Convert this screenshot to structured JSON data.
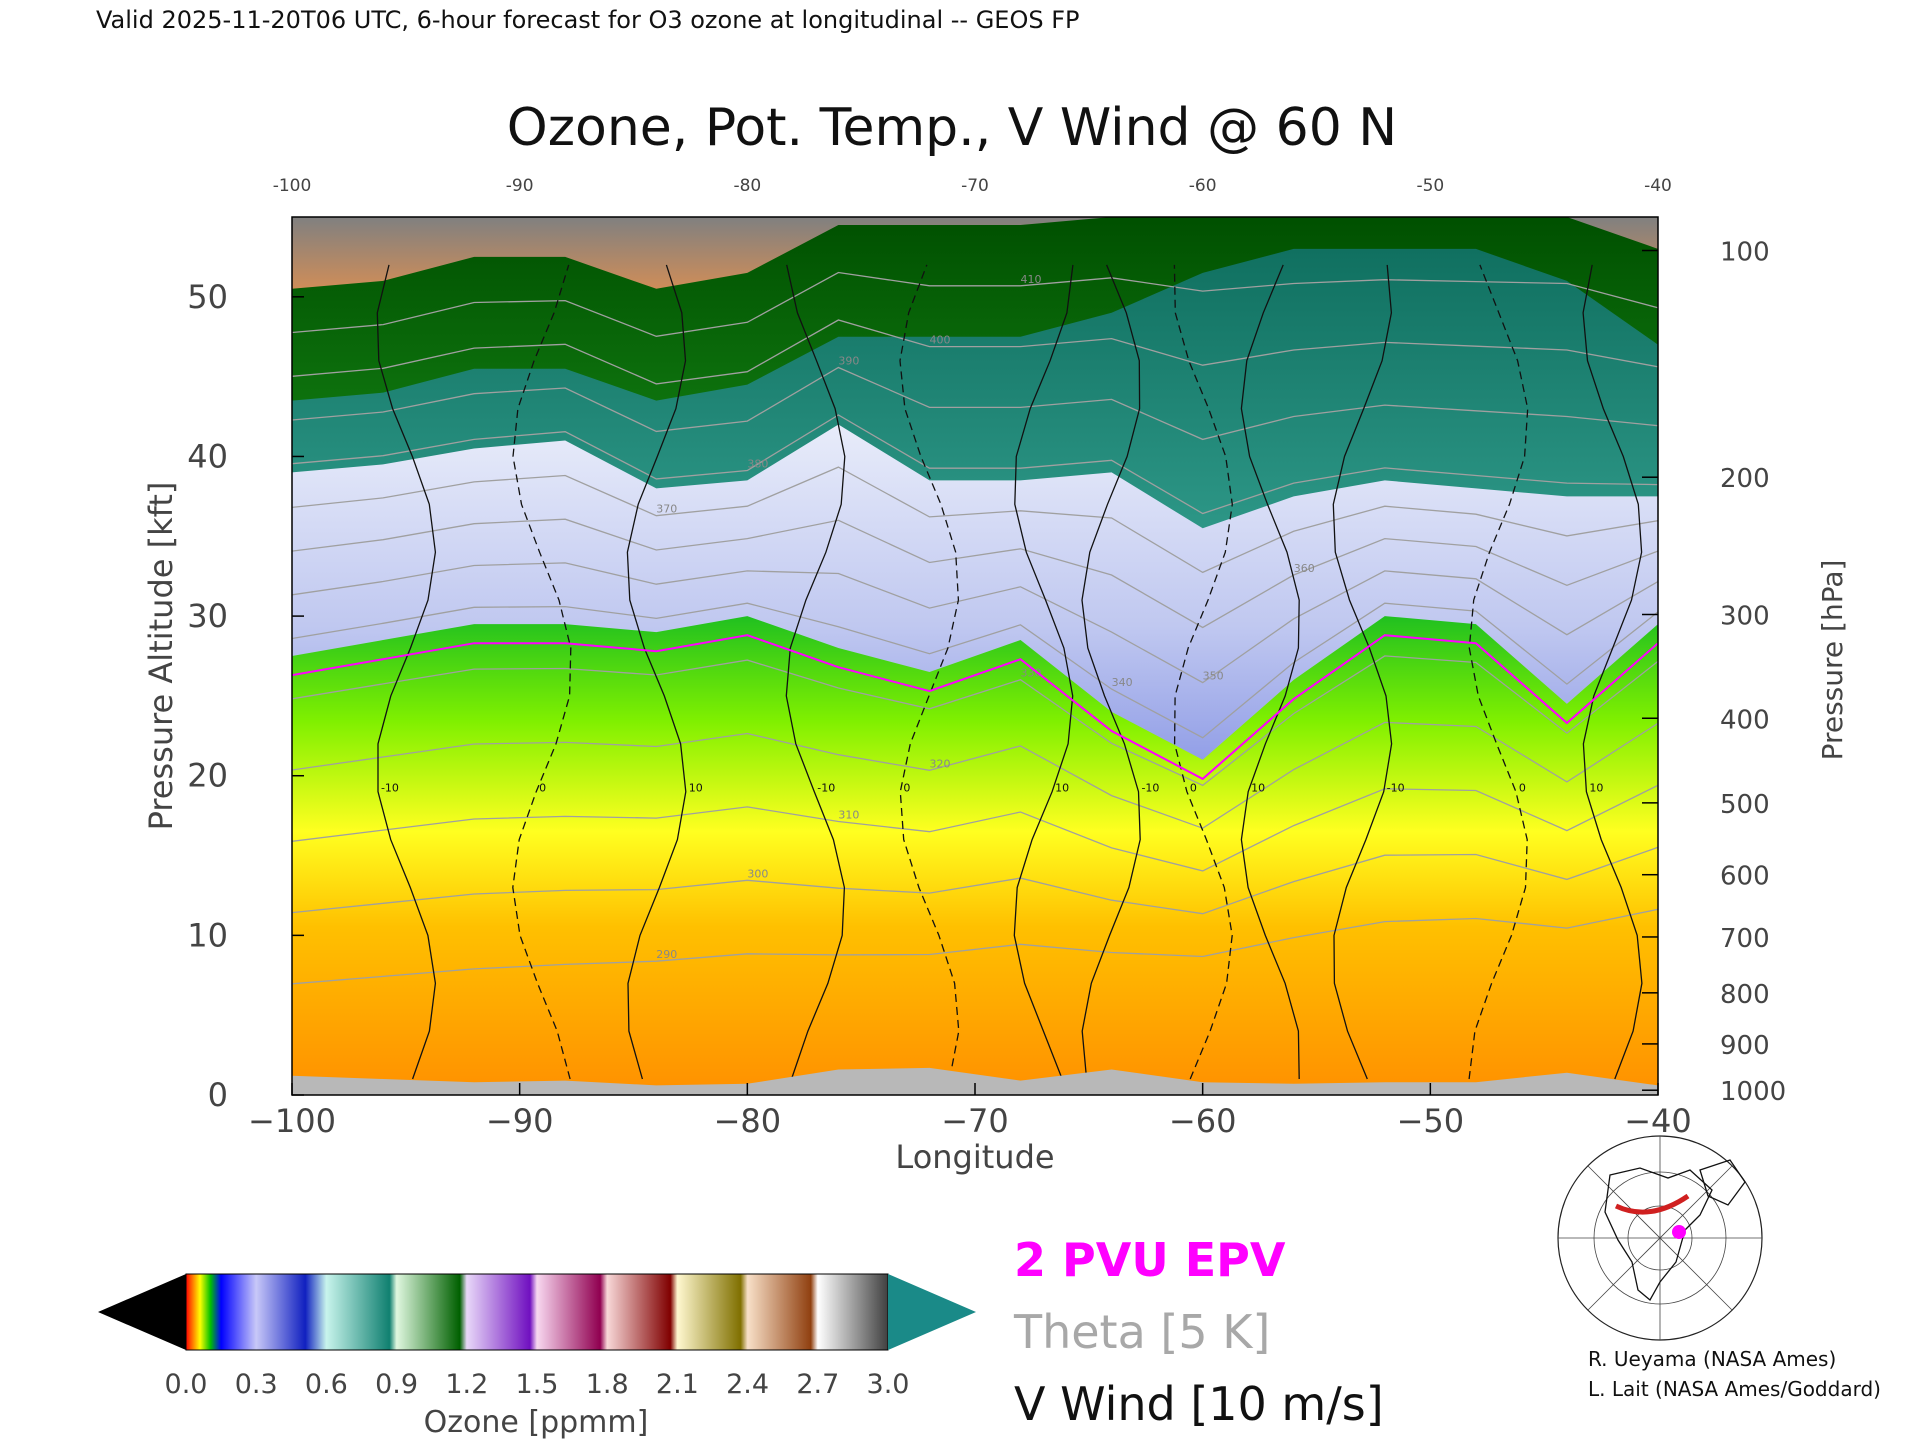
{
  "header": {
    "valid_line": "Valid 2025-11-20T06 UTC, 6-hour forecast for O3 ozone at longitudinal -- GEOS FP"
  },
  "chart_data": {
    "type": "heatmap",
    "title": "Ozone, Pot. Temp., V Wind @ 60 N",
    "xlabel": "Longitude",
    "ylabel": "Pressure Altitude [kft]",
    "ylabel_right": "Pressure [hPa]",
    "xlim": [
      -100,
      -40
    ],
    "ylim": [
      0,
      55
    ],
    "x_ticks": [
      "−100",
      "−90",
      "−80",
      "−70",
      "−60",
      "−50",
      "−40"
    ],
    "x_ticks_top": [
      "-100",
      "-90",
      "-80",
      "-70",
      "-60",
      "-50",
      "-40"
    ],
    "y_ticks": [
      "0",
      "10",
      "20",
      "30",
      "40",
      "50"
    ],
    "pressure_ticks": [
      {
        "label": "100",
        "kft": 52.9
      },
      {
        "label": "200",
        "kft": 38.7
      },
      {
        "label": "300",
        "kft": 30.1
      },
      {
        "label": "400",
        "kft": 23.6
      },
      {
        "label": "500",
        "kft": 18.3
      },
      {
        "label": "600",
        "kft": 13.8
      },
      {
        "label": "700",
        "kft": 9.9
      },
      {
        "label": "800",
        "kft": 6.4
      },
      {
        "label": "900",
        "kft": 3.2
      },
      {
        "label": "1000",
        "kft": 0.3
      }
    ],
    "longitude": [
      -100,
      -96,
      -92,
      -88,
      -84,
      -80,
      -76,
      -72,
      -68,
      -64,
      -60,
      -56,
      -52,
      -48,
      -44,
      -40
    ],
    "ozone_boundaries_kft": {
      "low_ozone_top": [
        27.5,
        28.5,
        29.5,
        29.5,
        29.0,
        30.0,
        28.0,
        26.5,
        28.5,
        24.0,
        21.0,
        26.0,
        30.0,
        29.5,
        24.5,
        29.5
      ],
      "tropopause_top": [
        39.0,
        39.5,
        40.5,
        41.0,
        38.0,
        38.5,
        42.0,
        38.5,
        38.5,
        39.0,
        35.5,
        37.5,
        38.5,
        38.0,
        37.5,
        37.5
      ],
      "mid_ozone_top": [
        43.5,
        44.0,
        45.5,
        45.5,
        43.5,
        44.5,
        47.5,
        47.5,
        47.5,
        49.0,
        51.5,
        53.0,
        53.0,
        53.0,
        51.0,
        47.0
      ],
      "high_ozone_top": [
        50.5,
        51.0,
        52.5,
        52.5,
        50.5,
        51.5,
        54.5,
        54.5,
        54.5,
        55.0,
        55.0,
        55.0,
        55.0,
        55.0,
        55.0,
        53.0
      ]
    },
    "theta_contours_K": [
      "290",
      "300",
      "310",
      "320",
      "330",
      "340",
      "350",
      "360",
      "370",
      "380",
      "390",
      "400",
      "410"
    ],
    "v_wind_contours_ms": [
      "-10",
      "0",
      "10"
    ],
    "colorbar": {
      "label": "Ozone [ppmm]",
      "ticks": [
        "0.0",
        "0.3",
        "0.6",
        "0.9",
        "1.2",
        "1.5",
        "1.8",
        "2.1",
        "2.4",
        "2.7",
        "3.0"
      ],
      "min": 0.0,
      "max": 3.0
    },
    "legend": {
      "epv": "2 PVU EPV",
      "theta": "Theta [5 K]",
      "vwind": "V Wind [10 m/s]"
    },
    "colors": {
      "epv": "#ff00ff",
      "theta": "#a0a0a0",
      "surface": "#b8b8b8"
    }
  },
  "credits": {
    "line1": "R. Ueyama (NASA Ames)",
    "line2": "L. Lait (NASA Ames/Goddard)"
  }
}
